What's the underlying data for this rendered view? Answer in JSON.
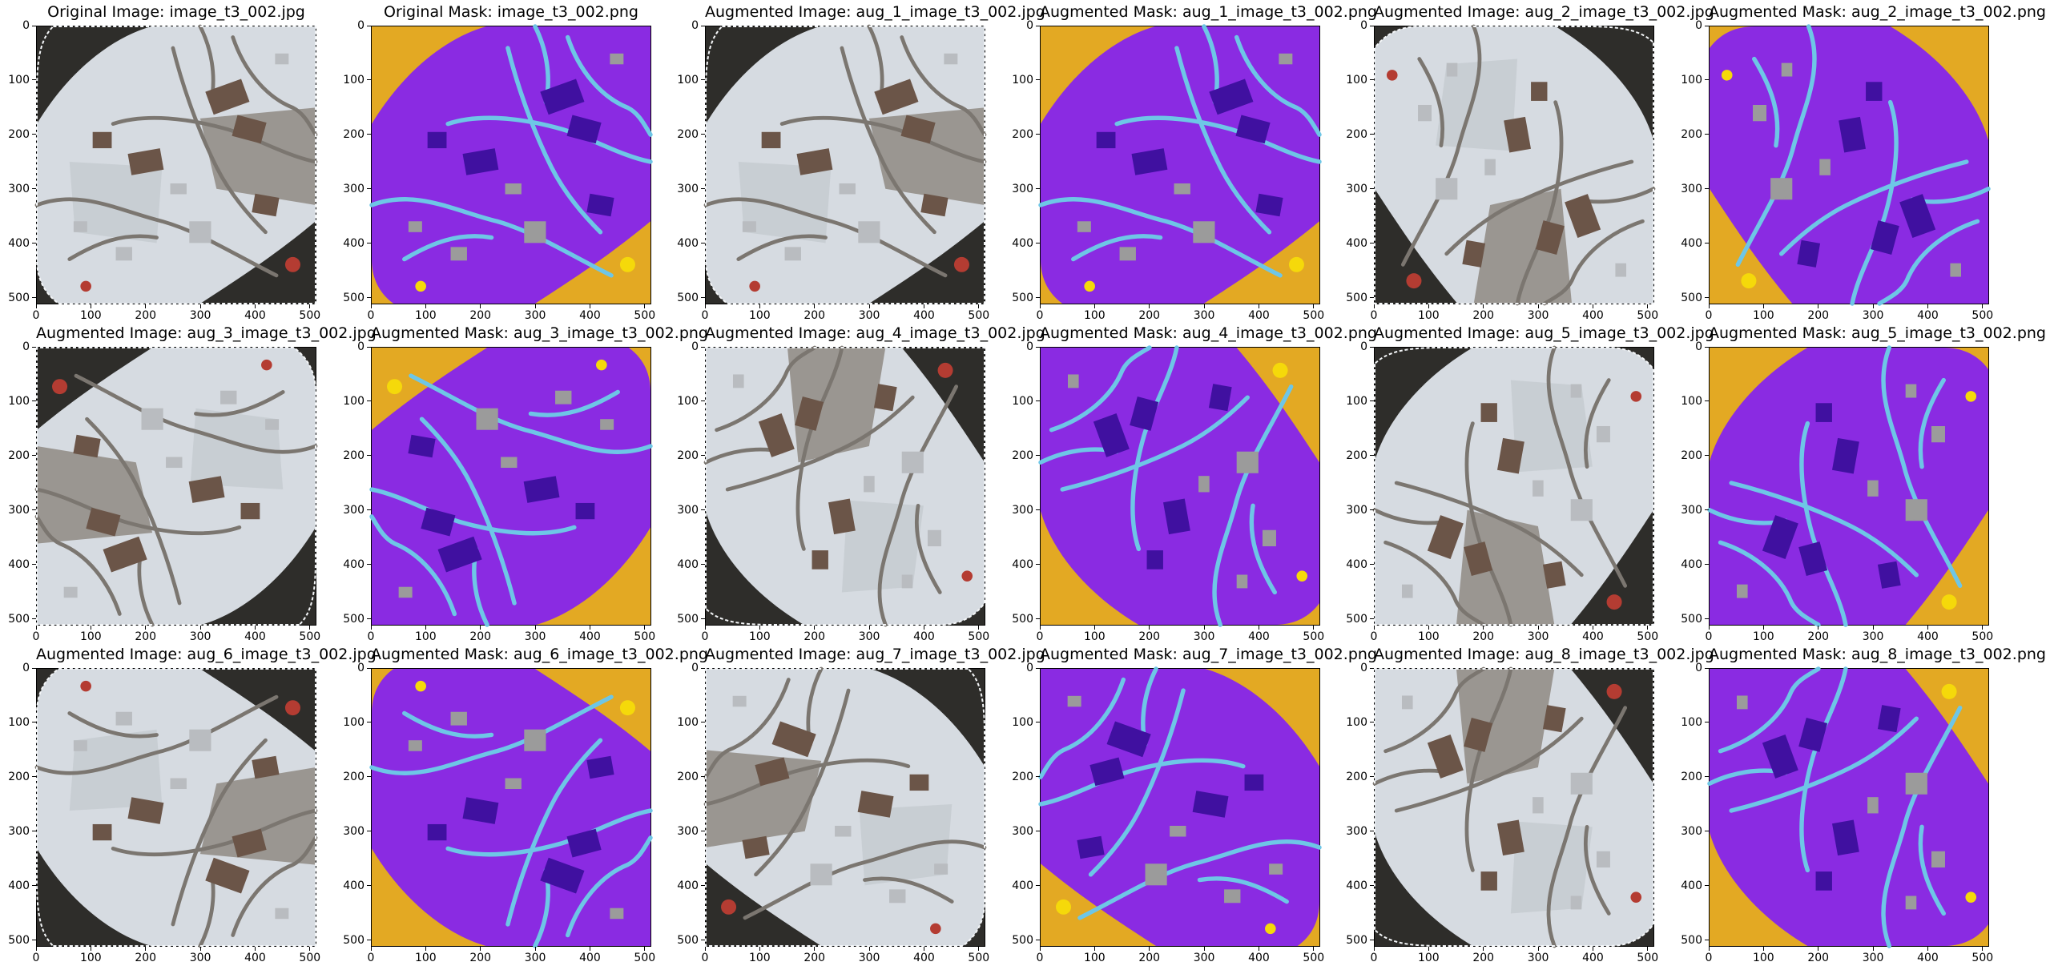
{
  "figure": {
    "panels": [
      {
        "title": "Original Image: image_t3_002.jpg",
        "kind": "image",
        "variant": 0
      },
      {
        "title": "Original Mask: image_t3_002.png",
        "kind": "mask",
        "variant": 0
      },
      {
        "title": "Augmented Image: aug_1_image_t3_002.jpg",
        "kind": "image",
        "variant": 1
      },
      {
        "title": "Augmented Mask: aug_1_image_t3_002.png",
        "kind": "mask",
        "variant": 1
      },
      {
        "title": "Augmented Image: aug_2_image_t3_002.jpg",
        "kind": "image",
        "variant": 2
      },
      {
        "title": "Augmented Mask: aug_2_image_t3_002.png",
        "kind": "mask",
        "variant": 2
      },
      {
        "title": "Augmented Image: aug_3_image_t3_002.jpg",
        "kind": "image",
        "variant": 3
      },
      {
        "title": "Augmented Mask: aug_3_image_t3_002.png",
        "kind": "mask",
        "variant": 3
      },
      {
        "title": "Augmented Image: aug_4_image_t3_002.jpg",
        "kind": "image",
        "variant": 4
      },
      {
        "title": "Augmented Mask: aug_4_image_t3_002.png",
        "kind": "mask",
        "variant": 4
      },
      {
        "title": "Augmented Image: aug_5_image_t3_002.jpg",
        "kind": "image",
        "variant": 5
      },
      {
        "title": "Augmented Mask: aug_5_image_t3_002.png",
        "kind": "mask",
        "variant": 5
      },
      {
        "title": "Augmented Image: aug_6_image_t3_002.jpg",
        "kind": "image",
        "variant": 6
      },
      {
        "title": "Augmented Mask: aug_6_image_t3_002.png",
        "kind": "mask",
        "variant": 6
      },
      {
        "title": "Augmented Image: aug_7_image_t3_002.jpg",
        "kind": "image",
        "variant": 7
      },
      {
        "title": "Augmented Mask: aug_7_image_t3_002.png",
        "kind": "mask",
        "variant": 7
      },
      {
        "title": "Augmented Image: aug_8_image_t3_002.jpg",
        "kind": "image",
        "variant": 8
      },
      {
        "title": "Augmented Mask: aug_8_image_t3_002.png",
        "kind": "mask",
        "variant": 8
      }
    ],
    "axis": {
      "x_ticks": [
        0,
        100,
        200,
        300,
        400,
        500
      ],
      "y_ticks": [
        0,
        100,
        200,
        300,
        400,
        500
      ],
      "range": [
        0,
        512
      ]
    },
    "mask_colors": {
      "water": "#e3a923",
      "land": "#8a2be2",
      "building": "#4010a0",
      "road": "#6ec6e6",
      "structure": "#9b9b9b",
      "vegetation": "#f5d90a"
    },
    "image_colors": {
      "water": "#2e2d2a",
      "land": "#d6dbe1",
      "building": "#6b5548",
      "road": "#7b7670",
      "structure": "#b9bcc0",
      "vegetation": "#b43c32"
    }
  }
}
